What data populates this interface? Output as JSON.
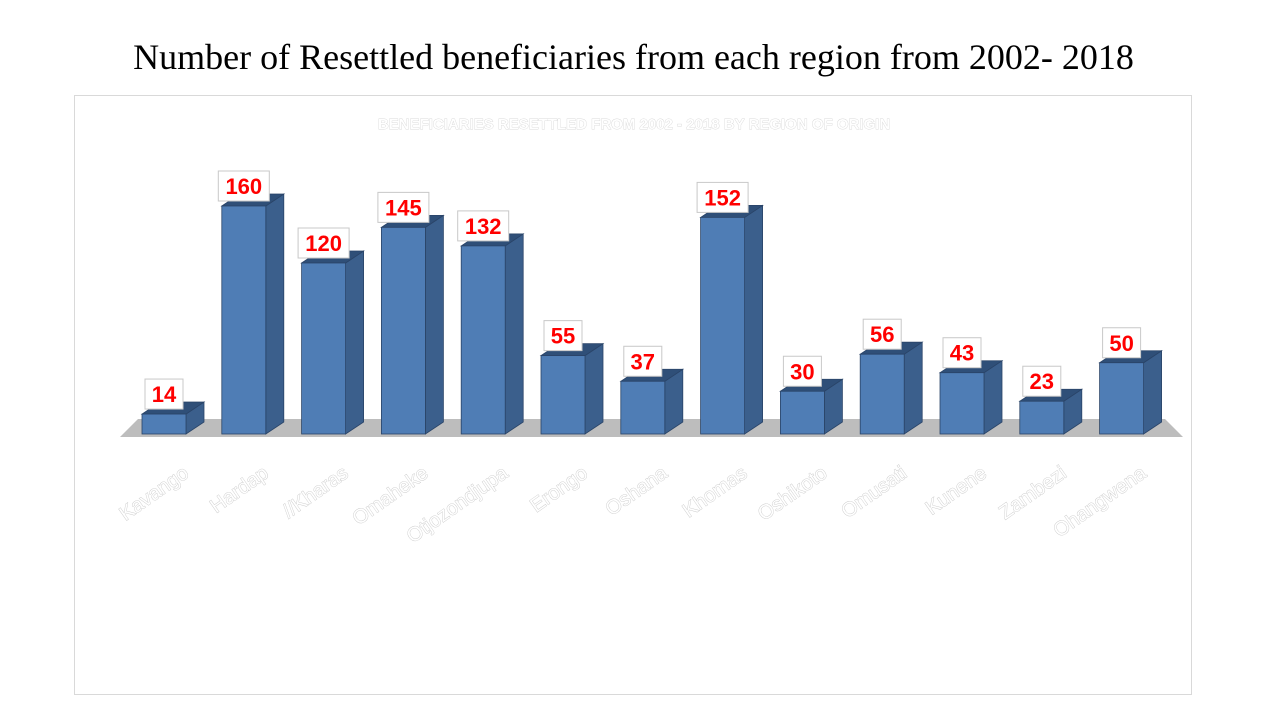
{
  "slide": {
    "title": "Number of Resettled beneficiaries from each region from 2002- 2018"
  },
  "chart_data": {
    "type": "bar",
    "title": "BENEFICIARIES RESETTLED FROM 2002 - 2018 BY REGION OF ORIGIN",
    "categories": [
      "Kavango",
      "Hardap",
      "//Kharas",
      "Omaheke",
      "Otjozondjupa",
      "Erongo",
      "Oshana",
      "Khomas",
      "Oshikoto",
      "Omusati",
      "Kunene",
      "Zambezi",
      "Ohangwena"
    ],
    "values": [
      14,
      160,
      120,
      145,
      132,
      55,
      37,
      152,
      30,
      56,
      43,
      23,
      50
    ],
    "xlabel": "",
    "ylabel": "",
    "ylim": [
      0,
      160
    ],
    "grid": false,
    "legend": "none",
    "style": "3d-column",
    "colors": {
      "bar_front": "#4f7db5",
      "bar_side": "#3b5f8c",
      "bar_top": "#2f4f78",
      "floor": "#bdbdbd",
      "data_label": "#ff0000",
      "category_label": "#ffffff"
    }
  }
}
